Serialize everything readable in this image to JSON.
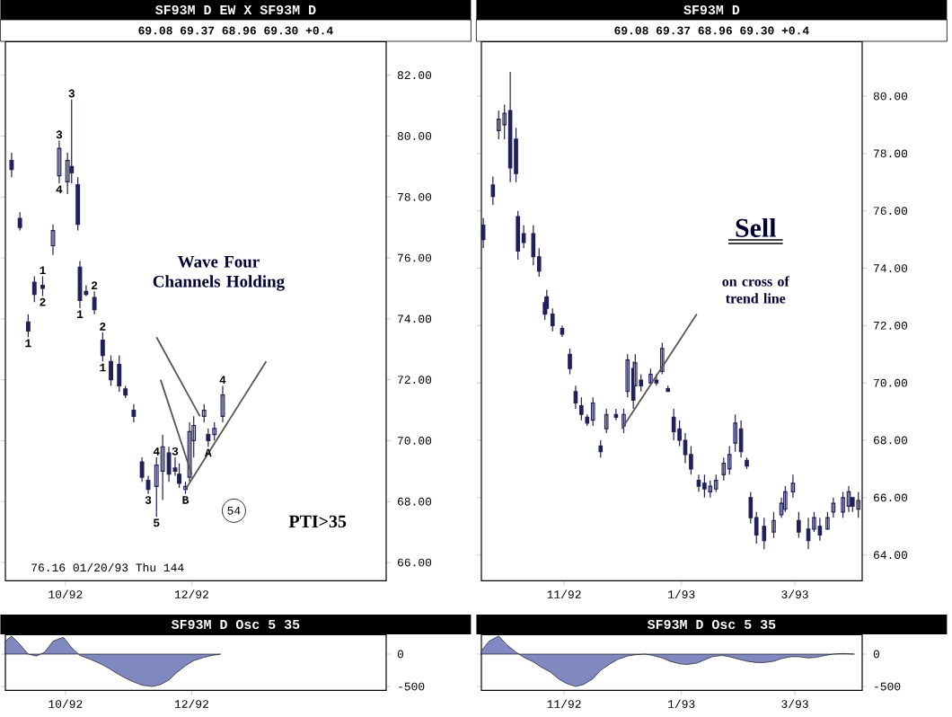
{
  "chart_data": [
    {
      "type": "candlestick",
      "title": "SF93M D EW X SF93M D",
      "subtitle": "69.08    69.37    68.96    69.30    +0.4",
      "color": "#20205a",
      "x": [
        "1992-09-05",
        "1992-09-09",
        "1992-09-13",
        "1992-09-16",
        "1992-09-20",
        "1992-09-25",
        "1992-09-28",
        "1992-10-02",
        "1992-10-04",
        "1992-10-07",
        "1992-10-08",
        "1992-10-11",
        "1992-10-15",
        "1992-10-19",
        "1992-10-23",
        "1992-10-27",
        "1992-10-30",
        "1992-11-03",
        "1992-11-07",
        "1992-11-10",
        "1992-11-14",
        "1992-11-17",
        "1992-11-20",
        "1992-11-23",
        "1992-11-25",
        "1992-11-28",
        "1992-11-30",
        "1992-12-02",
        "1992-12-07",
        "1992-12-09",
        "1992-12-12",
        "1992-12-16"
      ],
      "ohlc": [
        [
          79.2,
          79.45,
          78.65,
          78.9
        ],
        [
          77.3,
          77.5,
          76.9,
          77.0
        ],
        [
          73.9,
          74.15,
          73.4,
          73.6
        ],
        [
          75.2,
          75.4,
          74.55,
          74.8
        ],
        [
          75.1,
          75.4,
          74.75,
          75.0
        ],
        [
          76.4,
          77.1,
          76.1,
          76.9
        ],
        [
          78.7,
          79.85,
          78.45,
          79.6
        ],
        [
          78.5,
          79.45,
          78.1,
          79.2
        ],
        [
          79.0,
          81.2,
          78.45,
          78.8
        ],
        [
          78.4,
          78.65,
          76.9,
          77.1
        ],
        [
          75.7,
          75.9,
          74.35,
          74.6
        ],
        [
          74.9,
          75.1,
          74.75,
          74.8
        ],
        [
          74.7,
          74.9,
          74.15,
          74.3
        ],
        [
          73.3,
          73.55,
          72.6,
          72.8
        ],
        [
          72.6,
          72.8,
          71.8,
          72.0
        ],
        [
          72.5,
          72.8,
          71.6,
          71.8
        ],
        [
          71.7,
          71.8,
          71.4,
          71.5
        ],
        [
          71.0,
          71.2,
          70.6,
          70.8
        ],
        [
          69.3,
          69.45,
          68.65,
          68.8
        ],
        [
          68.7,
          68.85,
          68.25,
          68.4
        ],
        [
          68.5,
          69.45,
          67.5,
          69.2
        ],
        [
          69.0,
          70.2,
          68.05,
          69.8
        ],
        [
          69.6,
          69.8,
          68.65,
          68.9
        ],
        [
          69.1,
          69.45,
          68.85,
          69.0
        ],
        [
          68.9,
          69.25,
          68.45,
          68.6
        ],
        [
          68.4,
          68.65,
          68.25,
          68.5
        ],
        [
          68.8,
          70.6,
          68.65,
          70.3
        ],
        [
          70.0,
          70.8,
          69.45,
          70.5
        ],
        [
          70.8,
          71.2,
          70.6,
          71.0
        ],
        [
          70.2,
          70.4,
          69.8,
          70.0
        ],
        [
          70.2,
          70.6,
          70.0,
          70.4
        ],
        [
          70.8,
          71.8,
          70.6,
          71.5
        ]
      ],
      "series": [
        {
          "type": "line",
          "color": "#555555",
          "x": [
            "1992-11-28",
            "1993-01-06"
          ],
          "values": [
            68.4,
            72.6
          ]
        },
        {
          "type": "line",
          "color": "#555555",
          "x": [
            "1992-11-14",
            "1992-12-05"
          ],
          "values": [
            73.4,
            70.8
          ]
        },
        {
          "type": "line",
          "color": "#555555",
          "x": [
            "1992-11-16",
            "1992-12-01"
          ],
          "values": [
            72.0,
            68.9
          ]
        }
      ],
      "xlim": [
        "1992-09-02",
        "1993-03-05"
      ],
      "ylim": [
        65.4,
        83.1
      ],
      "xticks": [
        {
          "value": "1992-10-01",
          "label": "10/92"
        },
        {
          "value": "1992-12-01",
          "label": "12/92"
        }
      ],
      "yticks": [
        {
          "value": 66,
          "label": "66.00"
        },
        {
          "value": 68,
          "label": "68.00"
        },
        {
          "value": 70,
          "label": "70.00"
        },
        {
          "value": 72,
          "label": "72.00"
        },
        {
          "value": 74,
          "label": "74.00"
        },
        {
          "value": 76,
          "label": "76.00"
        },
        {
          "value": 78,
          "label": "78.00"
        },
        {
          "value": 80,
          "label": "80.00"
        },
        {
          "value": 82,
          "label": "82.00"
        }
      ],
      "annotations": [
        "Wave Four Channels Holding",
        "54",
        "PTI>35",
        "76.16   01/20/93 Thu 144",
        {
          "text": "1",
          "x": "1992-09-13",
          "y": 73.4
        },
        {
          "text": "1",
          "x": "1992-09-20",
          "y": 75.4
        },
        {
          "text": "2",
          "x": "1992-09-20",
          "y": 74.75
        },
        {
          "text": "3",
          "x": "1992-09-28",
          "y": 79.85
        },
        {
          "text": "4",
          "x": "1992-09-28",
          "y": 78.45
        },
        {
          "text": "3",
          "x": "1992-10-04",
          "y": 81.2
        },
        {
          "text": "1",
          "x": "1992-10-08",
          "y": 74.35
        },
        {
          "text": "2",
          "x": "1992-10-15",
          "y": 74.9
        },
        {
          "text": "1",
          "x": "1992-10-19",
          "y": 72.6
        },
        {
          "text": "2",
          "x": "1992-10-19",
          "y": 73.55
        },
        {
          "text": "4",
          "x": "1992-11-14",
          "y": 69.45
        },
        {
          "text": "3",
          "x": "1992-11-10",
          "y": 68.25
        },
        {
          "text": "5",
          "x": "1992-11-14",
          "y": 67.5
        },
        {
          "text": "3",
          "x": "1992-11-23",
          "y": 69.45
        },
        {
          "text": "B",
          "x": "1992-11-28",
          "y": 68.25
        },
        {
          "text": "A",
          "x": "1992-12-09",
          "y": 69.8
        },
        {
          "text": "4",
          "x": "1992-12-16",
          "y": 71.8
        }
      ]
    },
    {
      "type": "candlestick",
      "title": "SF93M D",
      "subtitle": "69.08    69.37    68.96    69.30    +0.4",
      "color": "#20205a",
      "x": [
        "1992-09-20",
        "1992-09-25",
        "1992-09-28",
        "1992-10-01",
        "1992-10-04",
        "1992-10-07",
        "1992-10-08",
        "1992-10-11",
        "1992-10-16",
        "1992-10-19",
        "1992-10-22",
        "1992-10-23",
        "1992-10-26",
        "1992-10-31",
        "1992-11-04",
        "1992-11-07",
        "1992-11-10",
        "1992-11-13",
        "1992-11-16",
        "1992-11-20",
        "1992-11-23",
        "1992-11-28",
        "1992-12-02",
        "1992-12-04",
        "1992-12-07",
        "1992-12-08",
        "1992-12-11",
        "1992-12-16",
        "1992-12-19",
        "1992-12-22",
        "1992-12-25",
        "1992-12-28",
        "1992-12-31",
        "1993-01-03",
        "1993-01-06",
        "1993-01-10",
        "1993-01-13",
        "1993-01-16",
        "1993-01-19",
        "1993-01-23",
        "1993-01-26",
        "1993-01-29",
        "1993-02-01",
        "1993-02-04",
        "1993-02-06",
        "1993-02-09",
        "1993-02-13",
        "1993-02-18",
        "1993-02-22",
        "1993-02-24",
        "1993-02-28",
        "1993-03-03",
        "1993-03-08",
        "1993-03-11",
        "1993-03-14",
        "1993-03-18",
        "1993-03-21",
        "1993-03-26",
        "1993-03-29",
        "1993-03-31",
        "1993-04-03"
      ],
      "ohlc": [
        [
          75.5,
          75.75,
          74.7,
          75.0
        ],
        [
          76.9,
          77.2,
          76.2,
          76.5
        ],
        [
          78.8,
          79.5,
          78.5,
          79.2
        ],
        [
          79.0,
          79.7,
          78.5,
          79.4
        ],
        [
          79.5,
          80.85,
          77.0,
          77.5
        ],
        [
          78.5,
          78.9,
          77.0,
          77.3
        ],
        [
          75.8,
          76.0,
          74.3,
          74.6
        ],
        [
          75.2,
          75.5,
          74.7,
          74.9
        ],
        [
          75.2,
          75.5,
          74.1,
          74.4
        ],
        [
          74.4,
          74.7,
          73.7,
          73.9
        ],
        [
          72.8,
          73.0,
          72.2,
          72.4
        ],
        [
          73.0,
          73.25,
          72.4,
          72.6
        ],
        [
          72.4,
          72.6,
          71.8,
          72.0
        ],
        [
          71.9,
          72.0,
          71.6,
          71.7
        ],
        [
          71.0,
          71.2,
          70.3,
          70.5
        ],
        [
          69.7,
          69.9,
          69.1,
          69.3
        ],
        [
          69.2,
          69.5,
          68.7,
          68.9
        ],
        [
          68.8,
          68.9,
          68.5,
          68.6
        ],
        [
          68.7,
          69.5,
          68.5,
          69.3
        ],
        [
          67.8,
          68.0,
          67.4,
          67.6
        ],
        [
          68.4,
          69.1,
          68.25,
          68.9
        ],
        [
          68.9,
          69.1,
          68.7,
          68.8
        ],
        [
          68.5,
          69.1,
          68.25,
          68.9
        ],
        [
          69.7,
          71.0,
          69.5,
          70.8
        ],
        [
          70.5,
          70.75,
          69.1,
          69.4
        ],
        [
          69.9,
          71.0,
          69.9,
          70.7
        ],
        [
          70.1,
          70.3,
          69.7,
          69.9
        ],
        [
          70.0,
          70.5,
          69.9,
          70.3
        ],
        [
          70.1,
          70.3,
          69.9,
          70.0
        ],
        [
          70.4,
          71.4,
          70.3,
          71.2
        ],
        [
          69.8,
          69.9,
          69.7,
          69.7
        ],
        [
          68.8,
          69.1,
          68.0,
          68.3
        ],
        [
          68.4,
          68.7,
          67.8,
          68.0
        ],
        [
          68.0,
          68.25,
          67.2,
          67.5
        ],
        [
          67.5,
          67.8,
          66.8,
          67.0
        ],
        [
          66.6,
          66.8,
          66.2,
          66.4
        ],
        [
          66.5,
          66.8,
          66.0,
          66.3
        ],
        [
          66.2,
          66.6,
          66.0,
          66.4
        ],
        [
          66.3,
          66.8,
          66.2,
          66.6
        ],
        [
          66.8,
          67.4,
          66.6,
          67.2
        ],
        [
          67.0,
          67.8,
          66.8,
          67.5
        ],
        [
          67.9,
          68.9,
          67.6,
          68.6
        ],
        [
          68.4,
          68.7,
          67.4,
          67.6
        ],
        [
          67.3,
          67.4,
          67.0,
          67.1
        ],
        [
          66.0,
          66.2,
          65.1,
          65.3
        ],
        [
          65.3,
          65.5,
          64.4,
          64.7
        ],
        [
          65.0,
          65.3,
          64.2,
          64.5
        ],
        [
          64.8,
          65.5,
          64.6,
          65.2
        ],
        [
          65.4,
          66.0,
          65.3,
          65.8
        ],
        [
          65.6,
          66.4,
          65.5,
          66.2
        ],
        [
          66.2,
          66.8,
          66.0,
          66.5
        ],
        [
          65.2,
          65.5,
          64.6,
          64.8
        ],
        [
          64.9,
          65.3,
          64.2,
          64.5
        ],
        [
          64.9,
          65.5,
          64.8,
          65.3
        ],
        [
          65.0,
          65.3,
          64.5,
          64.7
        ],
        [
          64.9,
          65.5,
          64.9,
          65.3
        ],
        [
          65.5,
          66.0,
          65.3,
          65.8
        ],
        [
          65.5,
          66.2,
          65.3,
          66.0
        ],
        [
          65.7,
          66.4,
          65.5,
          66.2
        ],
        [
          66.0,
          66.0,
          65.5,
          65.7
        ],
        [
          65.6,
          66.2,
          65.3,
          65.9
        ]
      ],
      "series": [
        {
          "type": "line",
          "color": "#555555",
          "x": [
            "1992-12-01",
            "1993-01-09"
          ],
          "values": [
            68.4,
            72.4
          ]
        }
      ],
      "xlim": [
        "1992-09-19",
        "1993-04-05"
      ],
      "ylim": [
        63.1,
        81.9
      ],
      "xticks": [
        {
          "value": "1992-11-01",
          "label": "11/92"
        },
        {
          "value": "1993-01-01",
          "label": "1/93"
        },
        {
          "value": "1993-03-01",
          "label": "3/93"
        }
      ],
      "yticks": [
        {
          "value": 64,
          "label": "64.00"
        },
        {
          "value": 66,
          "label": "66.00"
        },
        {
          "value": 68,
          "label": "68.00"
        },
        {
          "value": 70,
          "label": "70.00"
        },
        {
          "value": 72,
          "label": "72.00"
        },
        {
          "value": 74,
          "label": "74.00"
        },
        {
          "value": 76,
          "label": "76.00"
        },
        {
          "value": 78,
          "label": "78.00"
        },
        {
          "value": 80,
          "label": "80.00"
        }
      ],
      "annotations": [
        "Sell",
        "on cross of trend line"
      ]
    },
    {
      "type": "area",
      "title": "SF93M D Osc 5 35",
      "series": [
        {
          "color": "#8088c0",
          "x": [
            "1992-09-02",
            "1992-09-05",
            "1992-09-09",
            "1992-09-13",
            "1992-09-17",
            "1992-09-21",
            "1992-09-25",
            "1992-09-30",
            "1992-10-04",
            "1992-10-08",
            "1992-10-13",
            "1992-10-18",
            "1992-10-22",
            "1992-10-26",
            "1992-10-30",
            "1992-11-03",
            "1992-11-07",
            "1992-11-12",
            "1992-11-16",
            "1992-11-20",
            "1992-11-24",
            "1992-11-28",
            "1992-12-02",
            "1992-12-07",
            "1992-12-11",
            "1992-12-15"
          ],
          "values": [
            200,
            280,
            150,
            0,
            -30,
            30,
            200,
            260,
            100,
            -20,
            -80,
            -150,
            -220,
            -300,
            -370,
            -430,
            -480,
            -500,
            -470,
            -400,
            -280,
            -180,
            -100,
            -50,
            -20,
            0
          ]
        }
      ],
      "xlim": [
        "1992-09-02",
        "1993-03-05"
      ],
      "ylim": [
        -560,
        300
      ],
      "xticks": [
        {
          "value": "1992-10-01",
          "label": "10/92"
        },
        {
          "value": "1992-12-01",
          "label": "12/92"
        }
      ],
      "yticks": [
        0,
        -500
      ]
    },
    {
      "type": "area",
      "title": "SF93M D Osc 5 35",
      "series": [
        {
          "color": "#8088c0",
          "x": [
            "1992-09-19",
            "1992-09-23",
            "1992-09-28",
            "1992-10-02",
            "1992-10-07",
            "1992-10-11",
            "1992-10-16",
            "1992-10-20",
            "1992-10-25",
            "1992-10-29",
            "1992-11-02",
            "1992-11-07",
            "1992-11-11",
            "1992-11-16",
            "1992-11-20",
            "1992-11-25",
            "1992-11-29",
            "1992-12-04",
            "1992-12-08",
            "1992-12-13",
            "1992-12-17",
            "1992-12-22",
            "1992-12-26",
            "1992-12-31",
            "1993-01-04",
            "1993-01-09",
            "1993-01-13",
            "1993-01-17",
            "1993-01-22",
            "1993-01-26",
            "1993-01-31",
            "1993-02-04",
            "1993-02-09",
            "1993-02-13",
            "1993-02-18",
            "1993-02-22",
            "1993-02-27",
            "1993-03-03",
            "1993-03-08",
            "1993-03-12",
            "1993-03-17",
            "1993-03-21",
            "1993-03-26",
            "1993-04-01"
          ],
          "values": [
            50,
            200,
            280,
            150,
            30,
            -50,
            -120,
            -200,
            -280,
            -380,
            -450,
            -500,
            -470,
            -380,
            -250,
            -150,
            -80,
            -30,
            -10,
            0,
            -20,
            -60,
            -110,
            -150,
            -160,
            -140,
            -90,
            -40,
            -20,
            -40,
            -80,
            -110,
            -130,
            -130,
            -110,
            -70,
            -40,
            -40,
            -60,
            -50,
            -20,
            0,
            10,
            0
          ]
        }
      ],
      "xlim": [
        "1992-09-19",
        "1993-04-05"
      ],
      "ylim": [
        -560,
        300
      ],
      "xticks": [
        {
          "value": "1992-11-01",
          "label": "11/92"
        },
        {
          "value": "1993-01-01",
          "label": "1/93"
        },
        {
          "value": "1993-03-01",
          "label": "3/93"
        }
      ],
      "yticks": [
        0,
        -500
      ]
    }
  ]
}
